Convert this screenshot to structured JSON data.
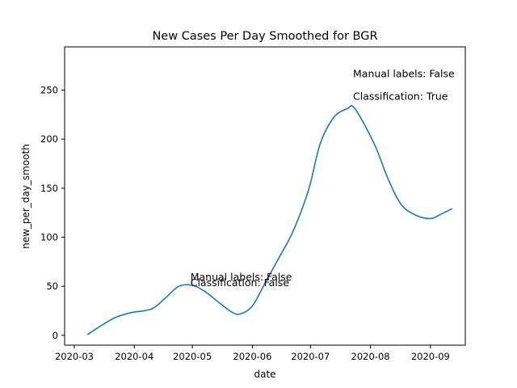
{
  "chart_data": {
    "type": "line",
    "title": "New Cases Per Day Smoothed for BGR",
    "xlabel": "date",
    "ylabel": "new_per_day_smooth",
    "x_ticks": [
      "2020-03",
      "2020-04",
      "2020-05",
      "2020-06",
      "2020-07",
      "2020-08",
      "2020-09"
    ],
    "x_tick_dates": [
      "2020-03-01",
      "2020-04-01",
      "2020-05-01",
      "2020-06-01",
      "2020-07-01",
      "2020-08-01",
      "2020-09-01"
    ],
    "y_ticks": [
      0,
      50,
      100,
      150,
      200,
      250
    ],
    "xlim": [
      "2020-02-25",
      "2020-09-19"
    ],
    "ylim": [
      -10,
      294
    ],
    "grid": false,
    "series": [
      {
        "color": "#1f77b4",
        "x": [
          "2020-03-08",
          "2020-03-15",
          "2020-03-22",
          "2020-03-30",
          "2020-04-10",
          "2020-04-17",
          "2020-04-24",
          "2020-05-01",
          "2020-05-08",
          "2020-05-15",
          "2020-05-22",
          "2020-05-26",
          "2020-06-01",
          "2020-06-08",
          "2020-06-15",
          "2020-06-22",
          "2020-06-30",
          "2020-07-06",
          "2020-07-13",
          "2020-07-20",
          "2020-07-24",
          "2020-08-03",
          "2020-08-10",
          "2020-08-17",
          "2020-08-25",
          "2020-09-01",
          "2020-09-06",
          "2020-09-12"
        ],
        "y": [
          1,
          10,
          18,
          23,
          27,
          38,
          50,
          51,
          44,
          33,
          23,
          22,
          30,
          55,
          80,
          106,
          148,
          195,
          222,
          231,
          231,
          195,
          160,
          133,
          122,
          119,
          123,
          129
        ]
      }
    ],
    "annotations": [
      {
        "text": "Manual labels: False",
        "x": "2020-04-30",
        "y": 56
      },
      {
        "text": "Classification: False",
        "x": "2020-04-30",
        "y": 50
      },
      {
        "text": "Manual labels: False",
        "x": "2020-07-23",
        "y": 263
      },
      {
        "text": "Classification: True",
        "x": "2020-07-23",
        "y": 240
      }
    ]
  }
}
